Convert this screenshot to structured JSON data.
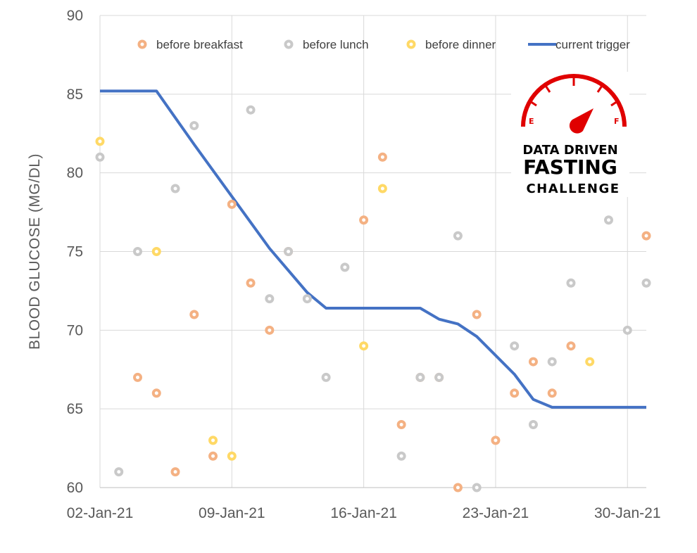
{
  "chart_data": {
    "type": "scatter",
    "title": "",
    "xlabel": "",
    "ylabel": "BLOOD GLUCOSE (MG/DL)",
    "x_tick_labels": [
      "02-Jan-21",
      "09-Jan-21",
      "16-Jan-21",
      "23-Jan-21",
      "30-Jan-21"
    ],
    "x_ticks": [
      "2021-01-02",
      "2021-01-09",
      "2021-01-16",
      "2021-01-23",
      "2021-01-30"
    ],
    "xlim": [
      "2021-01-02",
      "2021-01-31"
    ],
    "y_ticks": [
      60,
      65,
      70,
      75,
      80,
      85,
      90
    ],
    "ylim": [
      60,
      90
    ],
    "grid": true,
    "legend_position": "top",
    "series": [
      {
        "name": "before breakfast",
        "type": "scatter",
        "color": "#F4B183",
        "points": [
          {
            "x": "2021-01-04",
            "y": 67
          },
          {
            "x": "2021-01-05",
            "y": 66
          },
          {
            "x": "2021-01-06",
            "y": 61
          },
          {
            "x": "2021-01-07",
            "y": 71
          },
          {
            "x": "2021-01-08",
            "y": 62
          },
          {
            "x": "2021-01-09",
            "y": 78
          },
          {
            "x": "2021-01-10",
            "y": 73
          },
          {
            "x": "2021-01-11",
            "y": 70
          },
          {
            "x": "2021-01-12",
            "y": 75
          },
          {
            "x": "2021-01-16",
            "y": 77
          },
          {
            "x": "2021-01-17",
            "y": 81
          },
          {
            "x": "2021-01-18",
            "y": 64
          },
          {
            "x": "2021-01-19",
            "y": 67
          },
          {
            "x": "2021-01-20",
            "y": 67
          },
          {
            "x": "2021-01-21",
            "y": 60
          },
          {
            "x": "2021-01-22",
            "y": 71
          },
          {
            "x": "2021-01-23",
            "y": 63
          },
          {
            "x": "2021-01-24",
            "y": 66
          },
          {
            "x": "2021-01-25",
            "y": 68
          },
          {
            "x": "2021-01-26",
            "y": 66
          },
          {
            "x": "2021-01-27",
            "y": 69
          },
          {
            "x": "2021-01-31",
            "y": 76
          }
        ]
      },
      {
        "name": "before lunch",
        "type": "scatter",
        "color": "#C9C9C9",
        "points": [
          {
            "x": "2021-01-02",
            "y": 81
          },
          {
            "x": "2021-01-03",
            "y": 61
          },
          {
            "x": "2021-01-04",
            "y": 75
          },
          {
            "x": "2021-01-06",
            "y": 79
          },
          {
            "x": "2021-01-07",
            "y": 83
          },
          {
            "x": "2021-01-10",
            "y": 84
          },
          {
            "x": "2021-01-11",
            "y": 72
          },
          {
            "x": "2021-01-12",
            "y": 75
          },
          {
            "x": "2021-01-13",
            "y": 72
          },
          {
            "x": "2021-01-14",
            "y": 67
          },
          {
            "x": "2021-01-15",
            "y": 74
          },
          {
            "x": "2021-01-18",
            "y": 62
          },
          {
            "x": "2021-01-19",
            "y": 67
          },
          {
            "x": "2021-01-20",
            "y": 67
          },
          {
            "x": "2021-01-21",
            "y": 76
          },
          {
            "x": "2021-01-22",
            "y": 60
          },
          {
            "x": "2021-01-24",
            "y": 69
          },
          {
            "x": "2021-01-25",
            "y": 64
          },
          {
            "x": "2021-01-26",
            "y": 68
          },
          {
            "x": "2021-01-27",
            "y": 73
          },
          {
            "x": "2021-01-29",
            "y": 77
          },
          {
            "x": "2021-01-30",
            "y": 70
          },
          {
            "x": "2021-01-31",
            "y": 73
          }
        ]
      },
      {
        "name": "before dinner",
        "type": "scatter",
        "color": "#FFD966",
        "points": [
          {
            "x": "2021-01-02",
            "y": 82
          },
          {
            "x": "2021-01-05",
            "y": 75
          },
          {
            "x": "2021-01-08",
            "y": 63
          },
          {
            "x": "2021-01-09",
            "y": 62
          },
          {
            "x": "2021-01-16",
            "y": 69
          },
          {
            "x": "2021-01-17",
            "y": 79
          },
          {
            "x": "2021-01-28",
            "y": 68
          }
        ]
      },
      {
        "name": "current trigger",
        "type": "line",
        "color": "#4472C4",
        "points": [
          {
            "x": "2021-01-02",
            "y": 85.2
          },
          {
            "x": "2021-01-05",
            "y": 85.2
          },
          {
            "x": "2021-01-07",
            "y": 81.8
          },
          {
            "x": "2021-01-09",
            "y": 78.5
          },
          {
            "x": "2021-01-11",
            "y": 75.2
          },
          {
            "x": "2021-01-13",
            "y": 72.4
          },
          {
            "x": "2021-01-14",
            "y": 71.4
          },
          {
            "x": "2021-01-19",
            "y": 71.4
          },
          {
            "x": "2021-01-20",
            "y": 70.7
          },
          {
            "x": "2021-01-21",
            "y": 70.4
          },
          {
            "x": "2021-01-22",
            "y": 69.6
          },
          {
            "x": "2021-01-24",
            "y": 67.2
          },
          {
            "x": "2021-01-25",
            "y": 65.6
          },
          {
            "x": "2021-01-26",
            "y": 65.1
          },
          {
            "x": "2021-01-31",
            "y": 65.1
          }
        ]
      }
    ]
  },
  "logo": {
    "line1": "DATA DRIVEN",
    "line2": "FASTING",
    "line3": "CHALLENGE",
    "gauge_empty": "E",
    "gauge_full": "F",
    "accent_color": "#E00000"
  }
}
